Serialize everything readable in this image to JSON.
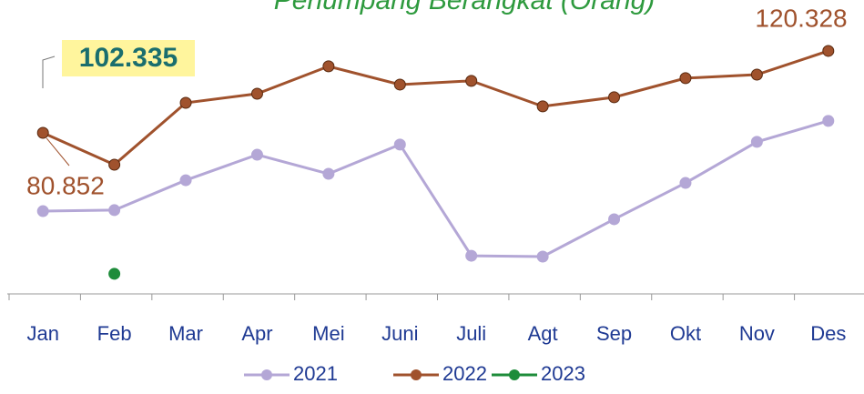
{
  "chart_data": {
    "type": "line",
    "title": "Penumpang Berangkat (Orang)",
    "annotation": "102.335",
    "categories": [
      "Jan",
      "Feb",
      "Mar",
      "Apr",
      "Mei",
      "Juni",
      "Juli",
      "Agt",
      "Sep",
      "Okt",
      "Nov",
      "Des"
    ],
    "ylim": [
      3,
      125
    ],
    "series": [
      {
        "name": "2021",
        "color": "#b4a7d6",
        "values": [
          43.1,
          43.6,
          58.0,
          70.3,
          61.1,
          75.2,
          21.6,
          21.2,
          39.2,
          56.7,
          76.5,
          86.6
        ]
      },
      {
        "name": "2022",
        "color": "#a0522d",
        "values": [
          80.852,
          65.5,
          95.3,
          99.7,
          112.9,
          104.1,
          105.9,
          93.6,
          98.0,
          107.2,
          108.9,
          120.328
        ],
        "value_labels": [
          "80.852",
          null,
          null,
          null,
          null,
          null,
          null,
          null,
          null,
          null,
          null,
          "120.328"
        ]
      },
      {
        "name": "2023",
        "color": "#1e8c3a",
        "values": [
          null,
          12.9,
          null,
          null,
          null,
          null,
          null,
          null,
          null,
          null,
          null,
          null
        ]
      }
    ]
  }
}
